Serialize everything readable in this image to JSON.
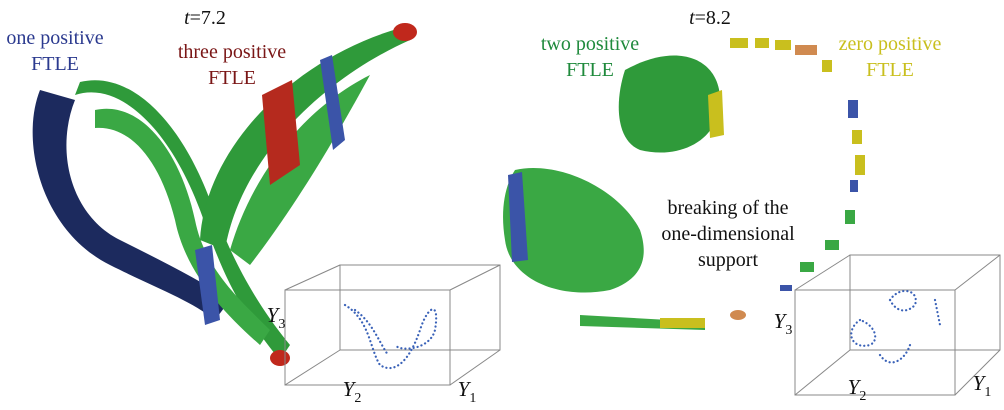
{
  "left_panel": {
    "time": {
      "symbol": "t",
      "value": "=7.2"
    },
    "labels": [
      {
        "lines": [
          "one positive",
          "FTLE"
        ]
      },
      {
        "lines": [
          "three positive",
          "FTLE"
        ]
      }
    ],
    "axes": [
      {
        "letter": "Y",
        "index": "3"
      },
      {
        "letter": "Y",
        "index": "2"
      },
      {
        "letter": "Y",
        "index": "1"
      }
    ]
  },
  "right_panel": {
    "time": {
      "symbol": "t",
      "value": "=8.2"
    },
    "labels": [
      {
        "lines": [
          "two positive",
          "FTLE"
        ]
      },
      {
        "lines": [
          "zero positive",
          "FTLE"
        ]
      },
      {
        "lines": [
          "breaking of the",
          "one-dimensional",
          "support"
        ]
      }
    ],
    "axes": [
      {
        "letter": "Y",
        "index": "3"
      },
      {
        "letter": "Y",
        "index": "2"
      },
      {
        "letter": "Y",
        "index": "1"
      }
    ]
  }
}
